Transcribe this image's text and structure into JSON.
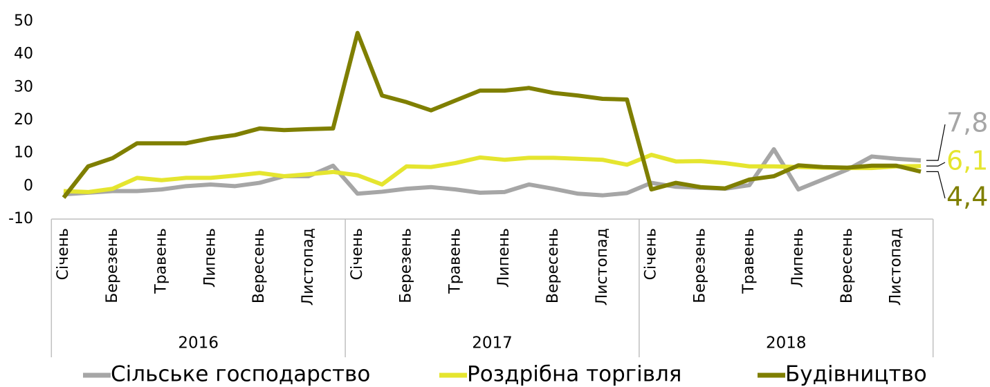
{
  "chart_data": {
    "type": "line",
    "categories": [
      "Січень",
      null,
      "Березень",
      null,
      "Травень",
      null,
      "Липень",
      null,
      "Вересень",
      null,
      "Листопад",
      null,
      "Січень",
      null,
      "Березень",
      null,
      "Травень",
      null,
      "Липень",
      null,
      "Вересень",
      null,
      "Листопад",
      null,
      "Січень",
      null,
      "Березень",
      null,
      "Травень",
      null,
      "Липень",
      null,
      "Вересень",
      null,
      "Листопад",
      null
    ],
    "group_labels": [
      "2016",
      "2017",
      "2018"
    ],
    "ylim": [
      -10,
      50
    ],
    "yticks": [
      -10,
      0,
      10,
      20,
      30,
      40,
      50
    ],
    "grid": false,
    "legend": "bottom",
    "series": [
      {
        "name": "Сільське господарство",
        "color": "#a6a6a6",
        "values": [
          -2.5,
          -2,
          -1.5,
          -1.5,
          -1,
          0,
          0.5,
          0,
          1,
          3,
          3,
          6.2,
          -2.3,
          -1.7,
          -0.8,
          -0.3,
          -1,
          -2,
          -1.8,
          0.5,
          -0.8,
          -2.3,
          -2.8,
          -2.1,
          1,
          -0.2,
          -0.5,
          -0.8,
          0.3,
          11.2,
          -1,
          2,
          5,
          9,
          8.3,
          7.8
        ],
        "value_labels": [
          null,
          null,
          null,
          null,
          null,
          null,
          null,
          null,
          null,
          null,
          null,
          null,
          null,
          null,
          null,
          null,
          null,
          null,
          null,
          null,
          null,
          null,
          null,
          null,
          null,
          null,
          null,
          null,
          null,
          null,
          null,
          null,
          null,
          null,
          null,
          "7,8"
        ]
      },
      {
        "name": "Роздрібна торгівля",
        "color": "#e5e52f",
        "values": [
          -1.5,
          -1.8,
          -0.8,
          2.5,
          1.8,
          2.5,
          2.5,
          3.2,
          4,
          3,
          3.6,
          4.3,
          3.3,
          0.5,
          6,
          5.8,
          7,
          8.7,
          8,
          8.6,
          8.6,
          8.3,
          8,
          6.5,
          9.5,
          7.5,
          7.6,
          7,
          6,
          6,
          5.8,
          5.6,
          5.5,
          5.5,
          6,
          6.1
        ],
        "value_labels": [
          null,
          null,
          null,
          null,
          null,
          null,
          null,
          null,
          null,
          null,
          null,
          null,
          null,
          null,
          null,
          null,
          null,
          null,
          null,
          null,
          null,
          null,
          null,
          null,
          null,
          null,
          null,
          null,
          null,
          null,
          null,
          null,
          null,
          null,
          null,
          "6,1"
        ]
      },
      {
        "name": "Будівництво",
        "color": "#7f7f00",
        "values": [
          -3.5,
          6,
          8.5,
          13,
          13,
          13,
          14.5,
          15.5,
          17.5,
          17,
          17.3,
          17.5,
          46.5,
          27.5,
          25.5,
          23,
          26,
          29,
          29,
          29.8,
          28.3,
          27.5,
          26.5,
          26.3,
          -1,
          1,
          -0.3,
          -0.7,
          2,
          3,
          6.3,
          5.8,
          5.6,
          6.2,
          6.2,
          4.4
        ],
        "value_labels": [
          null,
          null,
          null,
          null,
          null,
          null,
          null,
          null,
          null,
          null,
          null,
          null,
          null,
          null,
          null,
          null,
          null,
          null,
          null,
          null,
          null,
          null,
          null,
          null,
          null,
          null,
          null,
          null,
          null,
          null,
          null,
          null,
          null,
          null,
          null,
          "4,4"
        ]
      }
    ]
  }
}
